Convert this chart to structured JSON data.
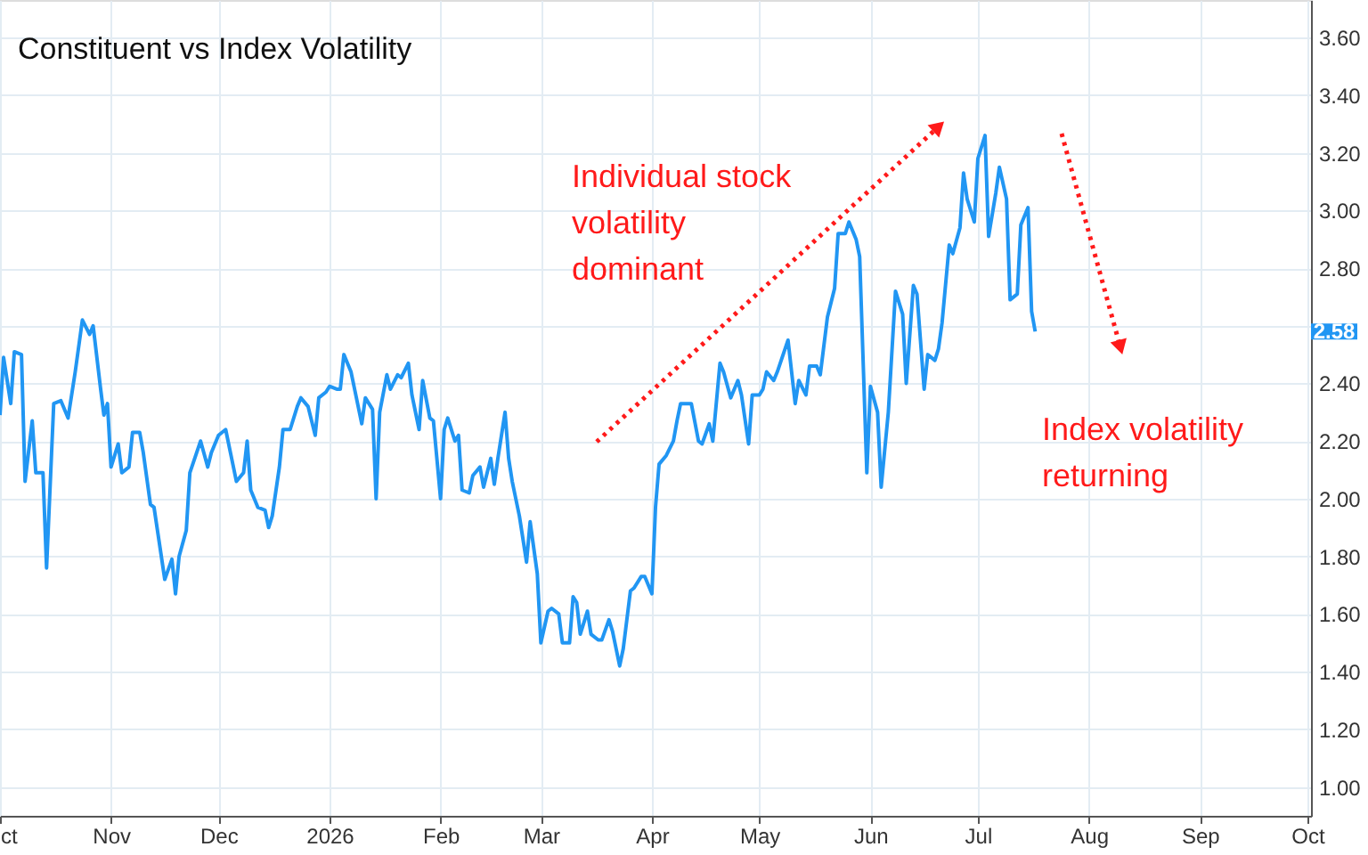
{
  "chart_data": {
    "type": "line",
    "title": "Constituent vs Index Volatility",
    "x": [
      "2025-10-01",
      "2025-10-02",
      "2025-10-04",
      "2025-10-05",
      "2025-10-07",
      "2025-10-08",
      "2025-10-10",
      "2025-10-11",
      "2025-10-13",
      "2025-10-14",
      "2025-10-16",
      "2025-10-18",
      "2025-10-20",
      "2025-10-22",
      "2025-10-24",
      "2025-10-26",
      "2025-10-27",
      "2025-10-29",
      "2025-10-30",
      "2025-10-31",
      "2025-11-01",
      "2025-11-03",
      "2025-11-04",
      "2025-11-06",
      "2025-11-07",
      "2025-11-09",
      "2025-11-10",
      "2025-11-12",
      "2025-11-13",
      "2025-11-16",
      "2025-11-18",
      "2025-11-19",
      "2025-11-20",
      "2025-11-22",
      "2025-11-23",
      "2025-11-26",
      "2025-11-28",
      "2025-11-29",
      "2025-12-01",
      "2025-12-03",
      "2025-12-05",
      "2025-12-06",
      "2025-12-08",
      "2025-12-09",
      "2025-12-10",
      "2025-12-12",
      "2025-12-14",
      "2025-12-15",
      "2025-12-16",
      "2025-12-18",
      "2025-12-19",
      "2025-12-21",
      "2025-12-23",
      "2025-12-24",
      "2025-12-26",
      "2025-12-28",
      "2025-12-29",
      "2025-12-31",
      "2026-01-01",
      "2026-01-03",
      "2026-01-04",
      "2026-01-05",
      "2026-01-07",
      "2026-01-10",
      "2026-01-11",
      "2026-01-13",
      "2026-01-14",
      "2026-01-15",
      "2026-01-17",
      "2026-01-18",
      "2026-01-20",
      "2026-01-21",
      "2026-01-23",
      "2026-01-24",
      "2026-01-26",
      "2026-01-27",
      "2026-01-29",
      "2026-01-30",
      "2026-02-01",
      "2026-02-02",
      "2026-02-03",
      "2026-02-05",
      "2026-02-06",
      "2026-02-07",
      "2026-02-09",
      "2026-02-10",
      "2026-02-12",
      "2026-02-13",
      "2026-02-15",
      "2026-02-16",
      "2026-02-17",
      "2026-02-19",
      "2026-02-20",
      "2026-02-21",
      "2026-02-23",
      "2026-02-25",
      "2026-02-26",
      "2026-02-28",
      "2026-03-01",
      "2026-03-03",
      "2026-03-04",
      "2026-03-06",
      "2026-03-07",
      "2026-03-09",
      "2026-03-10",
      "2026-03-11",
      "2026-03-12",
      "2026-03-14",
      "2026-03-15",
      "2026-03-17",
      "2026-03-18",
      "2026-03-20",
      "2026-03-21",
      "2026-03-23",
      "2026-03-24",
      "2026-03-26",
      "2026-03-27",
      "2026-03-29",
      "2026-03-30",
      "2026-04-01",
      "2026-04-02",
      "2026-04-03",
      "2026-04-05",
      "2026-04-07",
      "2026-04-08",
      "2026-04-09",
      "2026-04-12",
      "2026-04-14",
      "2026-04-15",
      "2026-04-17",
      "2026-04-18",
      "2026-04-20",
      "2026-04-21",
      "2026-04-23",
      "2026-04-25",
      "2026-04-26",
      "2026-04-28",
      "2026-04-29",
      "2026-05-01",
      "2026-05-02",
      "2026-05-03",
      "2026-05-05",
      "2026-05-06",
      "2026-05-09",
      "2026-05-11",
      "2026-05-12",
      "2026-05-14",
      "2026-05-15",
      "2026-05-17",
      "2026-05-18",
      "2026-05-20",
      "2026-05-22",
      "2026-05-23",
      "2026-05-25",
      "2026-05-26",
      "2026-05-28",
      "2026-05-29",
      "2026-05-31",
      "2026-06-01",
      "2026-06-03",
      "2026-06-04",
      "2026-06-06",
      "2026-06-08",
      "2026-06-10",
      "2026-06-11",
      "2026-06-13",
      "2026-06-14",
      "2026-06-16",
      "2026-06-17",
      "2026-06-19",
      "2026-06-20",
      "2026-06-21",
      "2026-06-23",
      "2026-06-24",
      "2026-06-26",
      "2026-06-27",
      "2026-06-28",
      "2026-06-30",
      "2026-07-01",
      "2026-07-03",
      "2026-07-04",
      "2026-07-06",
      "2026-07-07",
      "2026-07-09",
      "2026-07-10",
      "2026-07-12",
      "2026-07-13",
      "2026-07-15",
      "2026-07-16",
      "2026-07-17"
    ],
    "series": [
      {
        "color": "#2196f3",
        "values": [
          2.29,
          2.49,
          2.33,
          2.51,
          2.5,
          2.06,
          2.27,
          2.09,
          2.09,
          1.76,
          2.33,
          2.34,
          2.28,
          2.44,
          2.62,
          2.57,
          2.6,
          2.39,
          2.29,
          2.33,
          2.11,
          2.19,
          2.09,
          2.11,
          2.23,
          2.23,
          2.16,
          1.98,
          1.97,
          1.72,
          1.79,
          1.67,
          1.8,
          1.89,
          2.09,
          2.2,
          2.11,
          2.16,
          2.22,
          2.24,
          2.12,
          2.06,
          2.09,
          2.2,
          2.03,
          1.97,
          1.96,
          1.9,
          1.94,
          2.11,
          2.24,
          2.24,
          2.32,
          2.35,
          2.32,
          2.22,
          2.35,
          2.37,
          2.39,
          2.38,
          2.38,
          2.5,
          2.44,
          2.26,
          2.35,
          2.31,
          2.0,
          2.3,
          2.43,
          2.38,
          2.43,
          2.42,
          2.47,
          2.36,
          2.24,
          2.41,
          2.28,
          2.27,
          2.0,
          2.24,
          2.28,
          2.2,
          2.22,
          2.03,
          2.02,
          2.08,
          2.11,
          2.04,
          2.14,
          2.05,
          2.14,
          2.3,
          2.14,
          2.06,
          1.94,
          1.78,
          1.92,
          1.74,
          1.5,
          1.61,
          1.62,
          1.6,
          1.5,
          1.5,
          1.66,
          1.64,
          1.53,
          1.61,
          1.53,
          1.51,
          1.51,
          1.58,
          1.54,
          1.42,
          1.48,
          1.68,
          1.69,
          1.73,
          1.73,
          1.67,
          1.97,
          2.12,
          2.15,
          2.2,
          2.27,
          2.33,
          2.33,
          2.2,
          2.19,
          2.26,
          2.2,
          2.47,
          2.44,
          2.35,
          2.41,
          2.36,
          2.19,
          2.36,
          2.36,
          2.38,
          2.44,
          2.41,
          2.44,
          2.55,
          2.33,
          2.41,
          2.36,
          2.46,
          2.46,
          2.43,
          2.63,
          2.73,
          2.92,
          2.92,
          2.96,
          2.9,
          2.84,
          2.09,
          2.39,
          2.3,
          2.04,
          2.3,
          2.72,
          2.64,
          2.4,
          2.74,
          2.71,
          2.38,
          2.5,
          2.48,
          2.52,
          2.61,
          2.88,
          2.85,
          2.94,
          3.13,
          3.04,
          2.96,
          3.18,
          3.26,
          2.91,
          3.06,
          3.15,
          3.04,
          2.69,
          2.71,
          2.95,
          3.01,
          2.65,
          2.58
        ]
      }
    ],
    "xlim": [
      "2025-10-01",
      "2026-10-02"
    ],
    "xticks": [
      {
        "value": "2025-10-01",
        "label": "ct"
      },
      {
        "value": "2025-11-01",
        "label": "Nov"
      },
      {
        "value": "2025-12-01",
        "label": "Dec"
      },
      {
        "value": "2026-01-01",
        "label": "2026"
      },
      {
        "value": "2026-02-01",
        "label": "Feb"
      },
      {
        "value": "2026-03-01",
        "label": "Mar"
      },
      {
        "value": "2026-04-01",
        "label": "Apr"
      },
      {
        "value": "2026-05-01",
        "label": "May"
      },
      {
        "value": "2026-06-01",
        "label": "Jun"
      },
      {
        "value": "2026-07-01",
        "label": "Jul"
      },
      {
        "value": "2026-08-01",
        "label": "Aug"
      },
      {
        "value": "2026-09-01",
        "label": "Sep"
      },
      {
        "value": "2026-10-01",
        "label": "Oct"
      }
    ],
    "ylim": [
      0.9,
      3.73
    ],
    "yticks": [
      {
        "value": 1.0,
        "label": "1.00"
      },
      {
        "value": 1.2,
        "label": "1.20"
      },
      {
        "value": 1.4,
        "label": "1.40"
      },
      {
        "value": 1.6,
        "label": "1.60"
      },
      {
        "value": 1.8,
        "label": "1.80"
      },
      {
        "value": 2.0,
        "label": "2.00"
      },
      {
        "value": 2.2,
        "label": "2.20"
      },
      {
        "value": 2.4,
        "label": "2.40"
      },
      {
        "value": 2.6,
        "label": null
      },
      {
        "value": 2.8,
        "label": "2.80"
      },
      {
        "value": 3.0,
        "label": "3.00"
      },
      {
        "value": 3.2,
        "label": "3.20"
      },
      {
        "value": 3.4,
        "label": "3.40"
      },
      {
        "value": 3.6,
        "label": "3.60"
      }
    ],
    "grid": true,
    "marker": "none",
    "line_style": "solid",
    "annotations": [
      "Individual stock\nvolatility\ndominant",
      "Index volatility\nreturning",
      {
        "text": "2.58",
        "y": 2.58
      }
    ]
  }
}
